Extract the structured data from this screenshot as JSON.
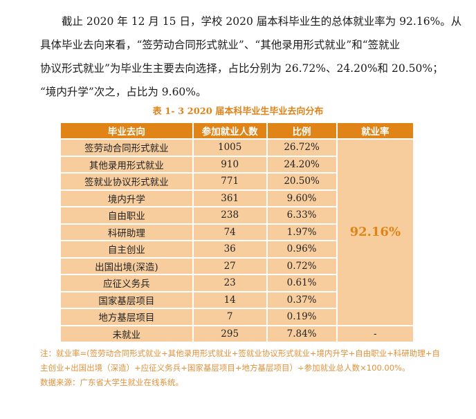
{
  "paragraph": {
    "lines": [
      "截止 2020 年 12 月 15 日，学校 2020 届本科毕业生的总体就业率为 92.16%。从",
      "具体毕业去向来看，“签劳动合同形式就业”、“其他录用形式就业”和“签就业",
      "协议形式就业”为毕业生主要去向选择，占比分别为 26.72%、24.20%和 20.50%；",
      "“境内升学”次之，占比为 9.60%。"
    ]
  },
  "table": {
    "caption": "表 1- 3    2020 届本科毕业生毕业去向分布",
    "headers": [
      "毕业去向",
      "参加就业人数",
      "比例",
      "就业率"
    ],
    "rows": [
      {
        "destination": "签劳动合同形式就业",
        "count": "1005",
        "ratio": "26.72%"
      },
      {
        "destination": "其他录用形式就业",
        "count": "910",
        "ratio": "24.20%"
      },
      {
        "destination": "签就业协议形式就业",
        "count": "771",
        "ratio": "20.50%"
      },
      {
        "destination": "境内升学",
        "count": "361",
        "ratio": "9.60%"
      },
      {
        "destination": "自由职业",
        "count": "238",
        "ratio": "6.33%"
      },
      {
        "destination": "科研助理",
        "count": "74",
        "ratio": "1.97%"
      },
      {
        "destination": "自主创业",
        "count": "36",
        "ratio": "0.96%"
      },
      {
        "destination": "出国出境(深造)",
        "count": "27",
        "ratio": "0.72%"
      },
      {
        "destination": "应征义务兵",
        "count": "23",
        "ratio": "0.61%"
      },
      {
        "destination": "国家基层项目",
        "count": "14",
        "ratio": "0.37%"
      },
      {
        "destination": "地方基层项目",
        "count": "7",
        "ratio": "0.19%"
      },
      {
        "destination": "未就业",
        "count": "295",
        "ratio": "7.84%"
      }
    ],
    "employment_rate": "92.16%",
    "unemployed_rate": "-"
  },
  "notes": {
    "formula_line1": "注：就业率=(签劳动合同形式就业+其他录用形式就业+签就业协议形式就业+境内升学+自由职业+科研助理+自",
    "formula_line2": "主创业+出国出境（深造）+应征义务兵+国家基层项目+地方基层项目）÷参加就业总人数×100.00%。",
    "source": "数据来源：广东省大学生就业在线系统。"
  },
  "colors": {
    "header_bg": "#E08418",
    "cell_bg": "#F7CD9E",
    "accent_text": "#E08418",
    "note_text": "#E0913A"
  }
}
